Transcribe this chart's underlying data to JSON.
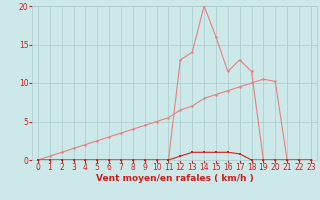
{
  "background_color": "#cce8e8",
  "grid_color": "#aacccc",
  "line_color_main": "#e88080",
  "line_color_dark": "#cc2020",
  "xlabel": "Vent moyen/en rafales ( km/h )",
  "xlim": [
    -0.5,
    23.5
  ],
  "ylim": [
    0,
    20
  ],
  "xticks": [
    0,
    1,
    2,
    3,
    4,
    5,
    6,
    7,
    8,
    9,
    10,
    11,
    12,
    13,
    14,
    15,
    16,
    17,
    18,
    19,
    20,
    21,
    22,
    23
  ],
  "yticks": [
    0,
    5,
    10,
    15,
    20
  ],
  "line1_x": [
    0,
    1,
    2,
    3,
    4,
    5,
    6,
    7,
    8,
    9,
    10,
    11,
    12,
    13,
    14,
    15,
    16,
    17,
    18,
    19,
    20,
    21,
    22,
    23
  ],
  "line1_y": [
    0,
    0,
    0,
    0,
    0,
    0,
    0,
    0,
    0,
    0,
    0,
    0,
    13,
    14,
    20,
    16,
    11.5,
    13,
    11.5,
    0,
    0,
    0,
    0,
    0
  ],
  "line2_x": [
    0,
    1,
    2,
    3,
    4,
    5,
    6,
    7,
    8,
    9,
    10,
    11,
    12,
    13,
    14,
    15,
    16,
    17,
    18,
    19,
    20,
    21,
    22,
    23
  ],
  "line2_y": [
    0,
    0.5,
    1,
    1.5,
    2,
    2.5,
    3,
    3.5,
    4,
    4.5,
    5,
    5.5,
    6.5,
    7,
    8,
    8.5,
    9,
    9.5,
    10,
    10.5,
    10.2,
    0,
    0,
    0
  ],
  "line3_x": [
    0,
    1,
    2,
    3,
    4,
    5,
    6,
    7,
    8,
    9,
    10,
    11,
    12,
    13,
    14,
    15,
    16,
    17,
    18,
    19,
    20,
    21,
    22,
    23
  ],
  "line3_y": [
    0,
    0,
    0,
    0,
    0,
    0,
    0,
    0,
    0,
    0,
    0,
    0,
    0.5,
    1,
    1,
    1,
    1,
    0.8,
    0,
    0,
    0,
    0,
    0,
    0
  ],
  "tick_fontsize": 5.5,
  "axis_fontsize": 6.5,
  "marker_size": 1.8,
  "linewidth": 0.8
}
